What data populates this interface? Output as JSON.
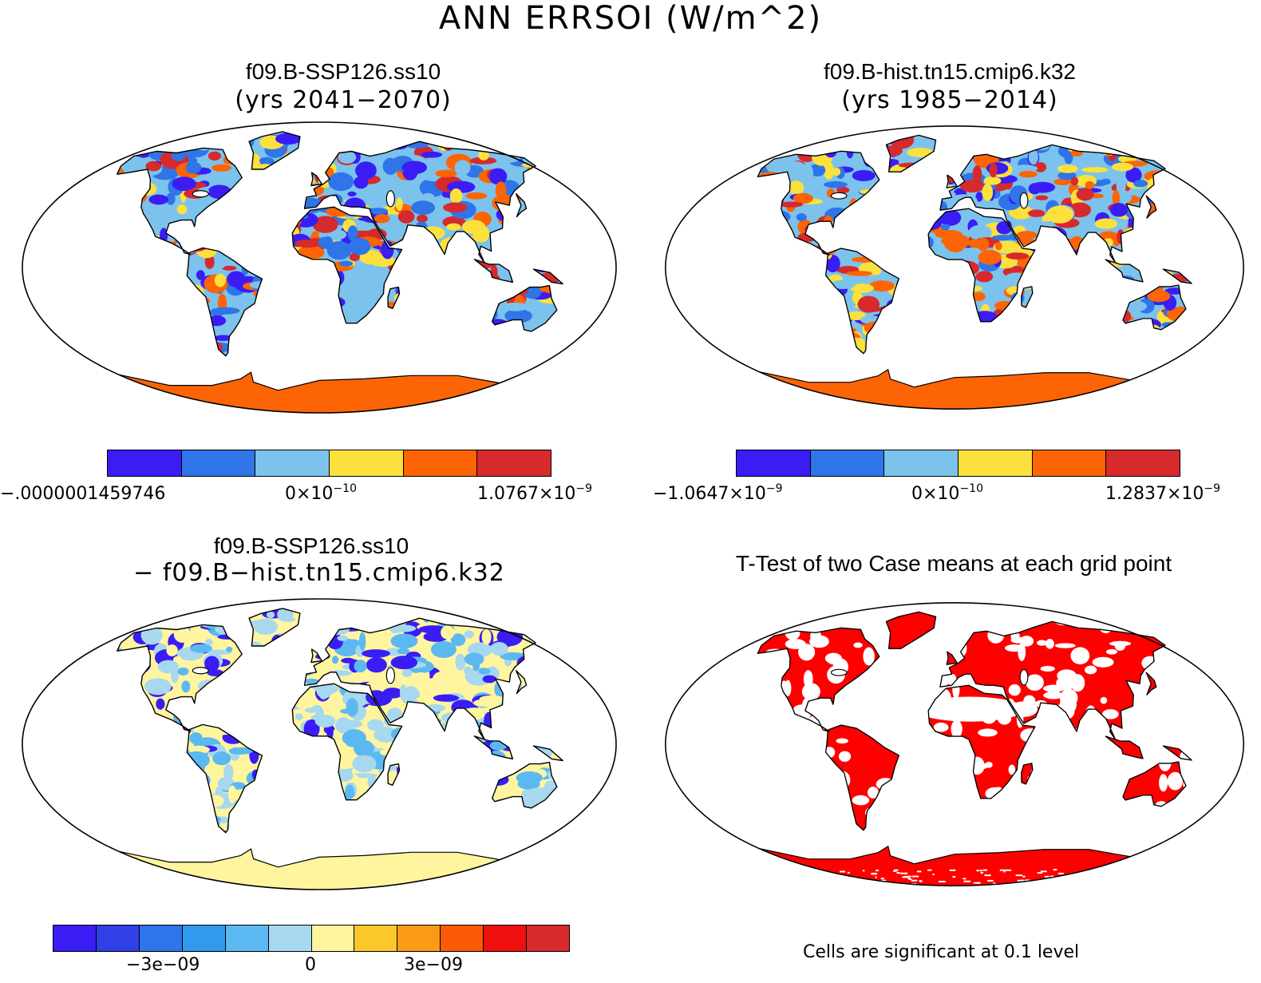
{
  "title": "ANN ERRSOI (W/m^2)",
  "colors": {
    "palette6": [
      "#3a1df5",
      "#2f74e8",
      "#7bc3ec",
      "#fce13d",
      "#fc6405",
      "#d62a2c"
    ],
    "palette12": [
      "#3a1df5",
      "#2e40e6",
      "#2f74e8",
      "#2f9aee",
      "#5cb8f0",
      "#a7d8ef",
      "#fff59f",
      "#fcc72a",
      "#fb9a14",
      "#fc5a08",
      "#f00f0f",
      "#d62a2c"
    ],
    "significant": "#ff0000",
    "antarctica_a": "#fc6405",
    "antarctica_c": "#fff59f"
  },
  "panels": {
    "a": {
      "title": "f09.B-SSP126.ss10",
      "subtitle": "(yrs 2041−2070)",
      "colorbar": {
        "min": "−.0000001459746",
        "mid": "0×10",
        "mid_exp": "−10",
        "max": "1.0767×10",
        "max_exp": "−9"
      }
    },
    "b": {
      "title": "f09.B-hist.tn15.cmip6.k32",
      "subtitle": "(yrs 1985−2014)",
      "colorbar": {
        "min": "−1.0647×10",
        "min_exp": "−9",
        "mid": "0×10",
        "mid_exp": "−10",
        "max": "1.2837×10",
        "max_exp": "−9"
      }
    },
    "c": {
      "title": "f09.B-SSP126.ss10",
      "subtitle": "−  f09.B−hist.tn15.cmip6.k32",
      "colorbar": {
        "ticks": [
          "−3e−09",
          "0",
          "3e−09"
        ]
      }
    },
    "d": {
      "title": "T-Test of two Case means at each grid point",
      "note": "Cells are significant at 0.1 level"
    }
  }
}
